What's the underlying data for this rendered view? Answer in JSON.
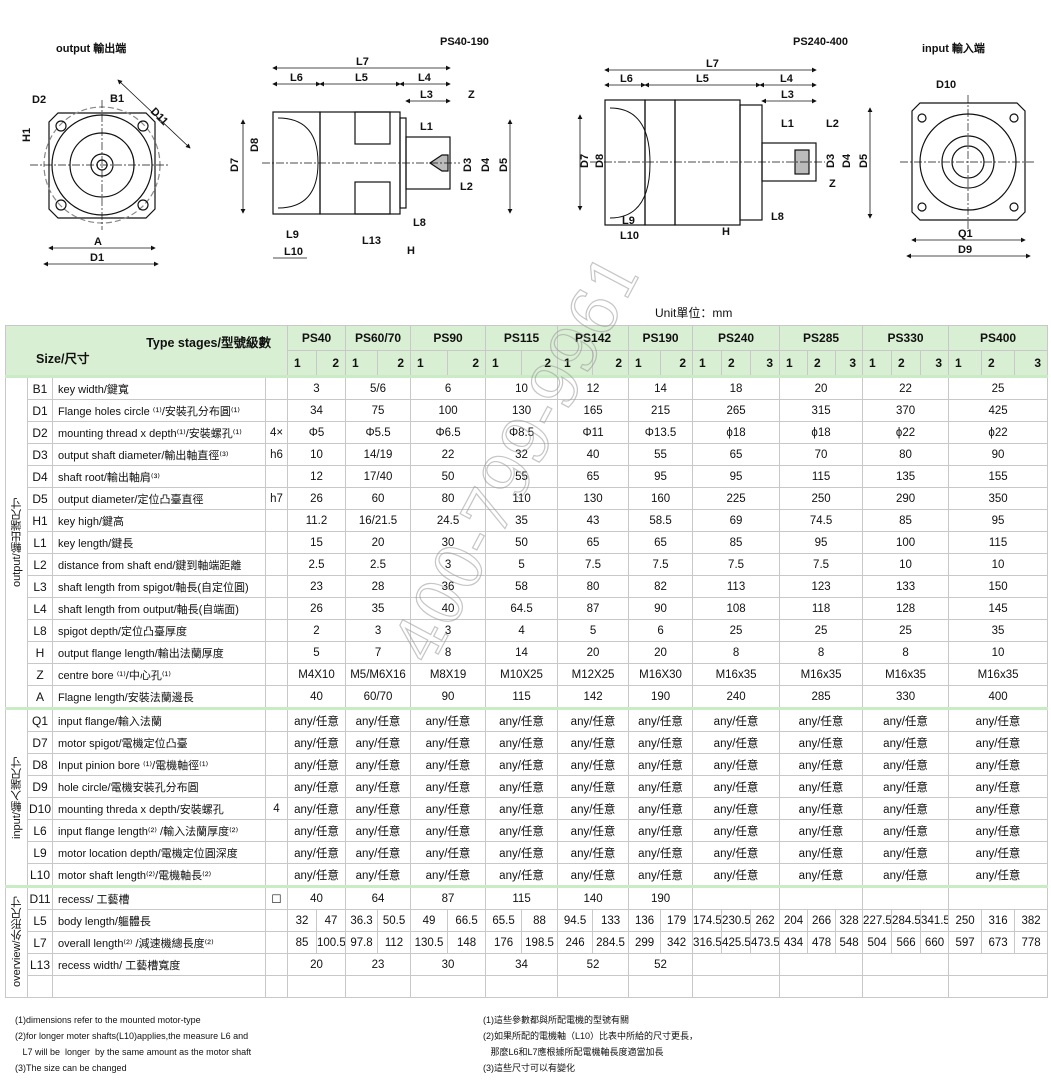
{
  "diagrams": {
    "output": {
      "title": "output 輸出端",
      "labels": [
        "D2",
        "B1",
        "D11",
        "H1",
        "A",
        "D1"
      ]
    },
    "ps40_190": {
      "title": "PS40-190",
      "labels": [
        "L7",
        "L6",
        "L5",
        "L4",
        "L3",
        "Z",
        "L1",
        "D8",
        "D7",
        "D3",
        "D4",
        "D5",
        "L2",
        "L8",
        "L9",
        "L13",
        "L10",
        "H"
      ]
    },
    "ps240_400": {
      "title": "PS240-400",
      "labels": [
        "L7",
        "L6",
        "L5",
        "L4",
        "L3",
        "L1",
        "L2",
        "D7",
        "D8",
        "D3",
        "D4",
        "D5",
        "Z",
        "L8",
        "L9",
        "L10",
        "H"
      ]
    },
    "input": {
      "title": "input 輸入端",
      "labels": [
        "D10",
        "Q1",
        "D9"
      ]
    }
  },
  "unit": "Unit單位：mm",
  "watermark": "400-799-9961",
  "table": {
    "header": {
      "type_stages": "Type stages/型號級數",
      "size": "Size/尺寸"
    },
    "models": [
      {
        "name": "PS40",
        "stages": [
          "1",
          "2"
        ]
      },
      {
        "name": "PS60/70",
        "stages": [
          "1",
          "2"
        ]
      },
      {
        "name": "PS90",
        "stages": [
          "1",
          "2"
        ]
      },
      {
        "name": "PS115",
        "stages": [
          "1",
          "2"
        ]
      },
      {
        "name": "PS142",
        "stages": [
          "1",
          "2"
        ]
      },
      {
        "name": "PS190",
        "stages": [
          "1",
          "2"
        ]
      },
      {
        "name": "PS240",
        "stages": [
          "1",
          "2",
          "3"
        ]
      },
      {
        "name": "PS285",
        "stages": [
          "1",
          "2",
          "3"
        ]
      },
      {
        "name": "PS330",
        "stages": [
          "1",
          "2",
          "3"
        ]
      },
      {
        "name": "PS400",
        "stages": [
          "1",
          "2",
          "3"
        ]
      }
    ],
    "sections": [
      {
        "label": "output/輸出端尺寸",
        "rows": [
          {
            "code": "B1",
            "desc": "key width/鍵寬",
            "extra": "",
            "values": [
              "3",
              "5/6",
              "6",
              "10",
              "12",
              "14",
              "18",
              "20",
              "22",
              "25"
            ]
          },
          {
            "code": "D1",
            "desc": "Flange holes circle ⁽¹⁾/安裝孔分布圓⁽¹⁾",
            "extra": "",
            "values": [
              "34",
              "75",
              "100",
              "130",
              "165",
              "215",
              "265",
              "315",
              "370",
              "425"
            ]
          },
          {
            "code": "D2",
            "desc": "mounting thread x depth⁽¹⁾/安裝螺孔⁽¹⁾",
            "extra": "4×",
            "values": [
              "Φ5",
              "Φ5.5",
              "Φ6.5",
              "Φ8.5",
              "Φ11",
              "Φ13.5",
              "ϕ18",
              "ϕ18",
              "ϕ22",
              "ϕ22"
            ]
          },
          {
            "code": "D3",
            "desc": "output shaft diameter/輸出軸直徑⁽³⁾",
            "extra": "h6",
            "values": [
              "10",
              "14/19",
              "22",
              "32",
              "40",
              "55",
              "65",
              "70",
              "80",
              "90"
            ]
          },
          {
            "code": "D4",
            "desc": "shaft root/輸出軸肩⁽³⁾",
            "extra": "",
            "values": [
              "12",
              "17/40",
              "50",
              "55",
              "65",
              "95",
              "95",
              "115",
              "135",
              "155"
            ]
          },
          {
            "code": "D5",
            "desc": "output diameter/定位凸臺直徑",
            "extra": "h7",
            "values": [
              "26",
              "60",
              "80",
              "110",
              "130",
              "160",
              "225",
              "250",
              "290",
              "350"
            ]
          },
          {
            "code": "H1",
            "desc": "key high/鍵高",
            "extra": "",
            "values": [
              "11.2",
              "16/21.5",
              "24.5",
              "35",
              "43",
              "58.5",
              "69",
              "74.5",
              "85",
              "95"
            ]
          },
          {
            "code": "L1",
            "desc": "key length/鍵長",
            "extra": "",
            "values": [
              "15",
              "20",
              "30",
              "50",
              "65",
              "65",
              "85",
              "95",
              "100",
              "115"
            ]
          },
          {
            "code": "L2",
            "desc": "distance from shaft end/鍵到軸端距離",
            "extra": "",
            "values": [
              "2.5",
              "2.5",
              "3",
              "5",
              "7.5",
              "7.5",
              "7.5",
              "7.5",
              "10",
              "10"
            ]
          },
          {
            "code": "L3",
            "desc": "shaft length from spigot/軸長(自定位圓)",
            "extra": "",
            "values": [
              "23",
              "28",
              "36",
              "58",
              "80",
              "82",
              "113",
              "123",
              "133",
              "150"
            ]
          },
          {
            "code": "L4",
            "desc": "shaft length from output/軸長(自端面)",
            "extra": "",
            "values": [
              "26",
              "35",
              "40",
              "64.5",
              "87",
              "90",
              "108",
              "118",
              "128",
              "145"
            ]
          },
          {
            "code": "L8",
            "desc": "spigot depth/定位凸臺厚度",
            "extra": "",
            "values": [
              "2",
              "3",
              "3",
              "4",
              "5",
              "6",
              "25",
              "25",
              "25",
              "35"
            ]
          },
          {
            "code": "H",
            "desc": "output flange length/輸出法蘭厚度",
            "extra": "",
            "values": [
              "5",
              "7",
              "8",
              "14",
              "20",
              "20",
              "8",
              "8",
              "8",
              "10"
            ]
          },
          {
            "code": "Z",
            "desc": "centre bore ⁽¹⁾/中心孔⁽¹⁾",
            "extra": "",
            "values": [
              "M4X10",
              "M5/M6X16",
              "M8X19",
              "M10X25",
              "M12X25",
              "M16X30",
              "M16x35",
              "M16x35",
              "M16x35",
              "M16x35"
            ]
          },
          {
            "code": "A",
            "desc": "Flagne length/安裝法蘭邊長",
            "extra": "",
            "values": [
              "40",
              "60/70",
              "90",
              "115",
              "142",
              "190",
              "240",
              "285",
              "330",
              "400"
            ]
          }
        ]
      },
      {
        "label": "input/輸入端尺寸",
        "rows": [
          {
            "code": "Q1",
            "desc": "input flange/輸入法蘭",
            "extra": "",
            "values": [
              "any/任意",
              "any/任意",
              "any/任意",
              "any/任意",
              "any/任意",
              "any/任意",
              "any/任意",
              "any/任意",
              "any/任意",
              "any/任意"
            ]
          },
          {
            "code": "D7",
            "desc": "motor spigot/電機定位凸臺",
            "extra": "",
            "values": [
              "any/任意",
              "any/任意",
              "any/任意",
              "any/任意",
              "any/任意",
              "any/任意",
              "any/任意",
              "any/任意",
              "any/任意",
              "any/任意"
            ]
          },
          {
            "code": "D8",
            "desc": "Input pinion bore ⁽¹⁾/電機軸徑⁽¹⁾",
            "extra": "",
            "values": [
              "any/任意",
              "any/任意",
              "any/任意",
              "any/任意",
              "any/任意",
              "any/任意",
              "any/任意",
              "any/任意",
              "any/任意",
              "any/任意"
            ]
          },
          {
            "code": "D9",
            "desc": "hole circle/電機安裝孔分布圓",
            "extra": "",
            "values": [
              "any/任意",
              "any/任意",
              "any/任意",
              "any/任意",
              "any/任意",
              "any/任意",
              "any/任意",
              "any/任意",
              "any/任意",
              "any/任意"
            ]
          },
          {
            "code": "D10",
            "desc": "mounting threda x depth/安裝螺孔",
            "extra": "4",
            "values": [
              "any/任意",
              "any/任意",
              "any/任意",
              "any/任意",
              "any/任意",
              "any/任意",
              "any/任意",
              "any/任意",
              "any/任意",
              "any/任意"
            ]
          },
          {
            "code": "L6",
            "desc": "input flange length⁽²⁾ /輸入法蘭厚度⁽²⁾",
            "extra": "",
            "values": [
              "any/任意",
              "any/任意",
              "any/任意",
              "any/任意",
              "any/任意",
              "any/任意",
              "any/任意",
              "any/任意",
              "any/任意",
              "any/任意"
            ]
          },
          {
            "code": "L9",
            "desc": "motor location depth/電機定位圓深度",
            "extra": "",
            "values": [
              "any/任意",
              "any/任意",
              "any/任意",
              "any/任意",
              "any/任意",
              "any/任意",
              "any/任意",
              "any/任意",
              "any/任意",
              "any/任意"
            ]
          },
          {
            "code": "L10",
            "desc": "motor shaft length⁽²⁾/電機軸長⁽²⁾",
            "extra": "",
            "values": [
              "any/任意",
              "any/任意",
              "any/任意",
              "any/任意",
              "any/任意",
              "any/任意",
              "any/任意",
              "any/任意",
              "any/任意",
              "any/任意"
            ]
          }
        ]
      },
      {
        "label": "overview/外形尺寸",
        "rows": [
          {
            "code": "D11",
            "desc": "recess/ 工藝槽",
            "extra": "☐",
            "values": [
              "40",
              "64",
              "87",
              "115",
              "140",
              "190",
              "",
              "",
              "",
              ""
            ]
          },
          {
            "code": "L5",
            "desc": "body length/軀體長",
            "extra": "",
            "values": [
              [
                "32",
                "47"
              ],
              [
                "36.3",
                "50.5"
              ],
              [
                "49",
                "66.5"
              ],
              [
                "65.5",
                "88"
              ],
              [
                "94.5",
                "133"
              ],
              [
                "136",
                "179"
              ],
              [
                "174.5",
                "230.5",
                "262"
              ],
              [
                "204",
                "266",
                "328"
              ],
              [
                "227.5",
                "284.5",
                "341.5"
              ],
              [
                "250",
                "316",
                "382"
              ]
            ]
          },
          {
            "code": "L7",
            "desc": "overall length⁽²⁾ /減速機總長度⁽²⁾",
            "extra": "",
            "values": [
              [
                "85",
                "100.5"
              ],
              [
                "97.8",
                "112"
              ],
              [
                "130.5",
                "148"
              ],
              [
                "176",
                "198.5"
              ],
              [
                "246",
                "284.5"
              ],
              [
                "299",
                "342"
              ],
              [
                "316.5",
                "425.5",
                "473.5"
              ],
              [
                "434",
                "478",
                "548"
              ],
              [
                "504",
                "566",
                "660"
              ],
              [
                "597",
                "673",
                "778"
              ]
            ]
          },
          {
            "code": "L13",
            "desc": "recess width/ 工藝槽寬度",
            "extra": "",
            "values": [
              "20",
              "23",
              "30",
              "34",
              "52",
              "52",
              "",
              "",
              "",
              ""
            ]
          }
        ]
      }
    ]
  },
  "notes": {
    "en": [
      "(1)dimensions refer to the mounted motor-type",
      "(2)for longer moter shafts(L10)applies,the measure  L6 and",
      "   L7 will be  longer  by the same amount as the motor shaft",
      "(3)The size can be changed"
    ],
    "zh": [
      "(1)這些參數都與所配電機的型號有關",
      "(2)如果所配的電機軸（L10）比表中所給的尺寸更長，",
      "   那麼L6和L7應根據所配電機軸長度適當加長",
      "(3)這些尺寸可以有變化"
    ]
  }
}
